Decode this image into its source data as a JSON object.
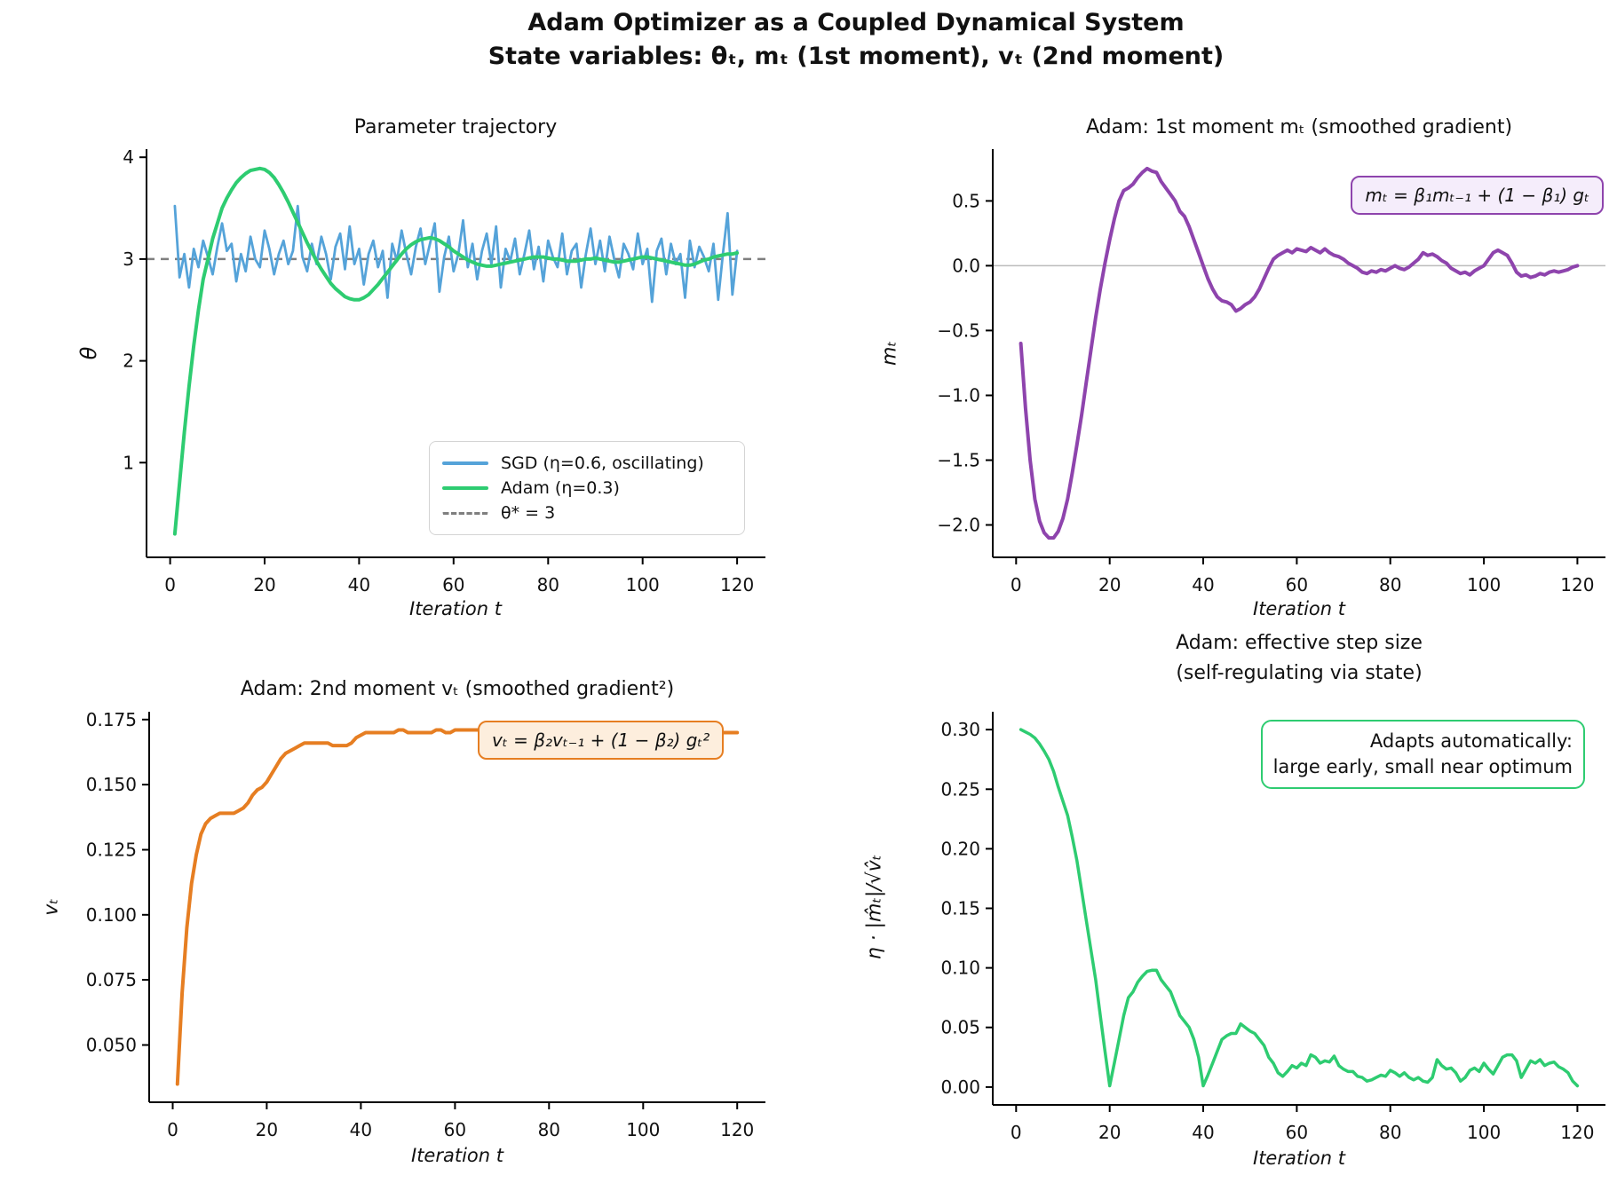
{
  "figure": {
    "suptitle_line1": "Adam Optimizer as a Coupled Dynamical System",
    "suptitle_line2": "State variables: θₜ, mₜ (1st moment), vₜ (2nd moment)",
    "background": "#ffffff"
  },
  "colors": {
    "sgd_blue": "#55a3d9",
    "adam_green": "#2ecc71",
    "moment_purple": "#8e44ad",
    "variance_orange": "#e67e22",
    "ref_gray": "#7f7f7f",
    "zero_line_gray": "#bbbbbb"
  },
  "chart_data": [
    {
      "id": "tl",
      "type": "line",
      "title": "Parameter trajectory",
      "xlabel": "Iteration t",
      "ylabel": "θ",
      "xlim": [
        -5,
        126
      ],
      "ylim": [
        0.07,
        4.08
      ],
      "grid": false,
      "xticks": [
        {
          "v": 0,
          "label": "0"
        },
        {
          "v": 20,
          "label": "20"
        },
        {
          "v": 40,
          "label": "40"
        },
        {
          "v": 60,
          "label": "60"
        },
        {
          "v": 80,
          "label": "80"
        },
        {
          "v": 100,
          "label": "100"
        },
        {
          "v": 120,
          "label": "120"
        }
      ],
      "yticks": [
        {
          "v": 1,
          "label": "1"
        },
        {
          "v": 2,
          "label": "2"
        },
        {
          "v": 3,
          "label": "3"
        },
        {
          "v": 4,
          "label": "4"
        }
      ],
      "ref_lines": [
        {
          "y": 3,
          "color": "#7f7f7f",
          "width": 2.5,
          "dash": "9 7",
          "name": "theta-star-line"
        }
      ],
      "series": [
        {
          "name": "SGD (η=0.6, oscillating)",
          "color": "#55a3d9",
          "width": 2.8,
          "x_start": 1,
          "values": [
            3.52,
            2.82,
            3.05,
            2.72,
            3.1,
            2.92,
            3.18,
            3.02,
            2.85,
            3.12,
            3.35,
            3.08,
            3.15,
            2.78,
            3.05,
            2.88,
            3.22,
            3.0,
            2.92,
            3.28,
            3.1,
            2.85,
            3.05,
            3.18,
            2.95,
            3.08,
            3.52,
            3.02,
            2.88,
            3.15,
            2.95,
            3.22,
            3.05,
            2.8,
            3.12,
            3.25,
            2.9,
            3.32,
            2.95,
            3.1,
            2.75,
            3.05,
            3.18,
            2.92,
            3.08,
            2.62,
            3.15,
            2.98,
            3.28,
            3.05,
            2.85,
            3.12,
            3.3,
            2.95,
            3.15,
            3.35,
            2.68,
            3.02,
            3.22,
            2.88,
            3.05,
            3.38,
            2.92,
            3.15,
            2.8,
            3.08,
            3.25,
            2.95,
            3.32,
            2.72,
            3.1,
            2.98,
            3.2,
            2.85,
            3.05,
            3.28,
            2.9,
            3.12,
            2.78,
            3.18,
            3.02,
            2.92,
            3.25,
            2.85,
            3.08,
            3.15,
            2.72,
            3.05,
            3.3,
            2.95,
            3.18,
            2.88,
            3.22,
            3.0,
            2.82,
            3.15,
            3.05,
            2.9,
            3.25,
            2.95,
            3.1,
            2.58,
            3.08,
            3.2,
            2.85,
            3.15,
            2.95,
            3.05,
            2.62,
            3.18,
            2.92,
            3.12,
            3.02,
            2.88,
            3.15,
            2.6,
            3.05,
            3.45,
            2.65,
            3.08
          ]
        },
        {
          "name": "Adam (η=0.3)",
          "color": "#2ecc71",
          "width": 4,
          "x_start": 1,
          "values": [
            0.3,
            0.8,
            1.3,
            1.75,
            2.15,
            2.5,
            2.8,
            3.0,
            3.2,
            3.35,
            3.5,
            3.6,
            3.68,
            3.75,
            3.8,
            3.84,
            3.87,
            3.88,
            3.89,
            3.88,
            3.85,
            3.8,
            3.73,
            3.65,
            3.56,
            3.46,
            3.36,
            3.26,
            3.16,
            3.07,
            2.98,
            2.9,
            2.83,
            2.76,
            2.71,
            2.67,
            2.63,
            2.61,
            2.6,
            2.6,
            2.62,
            2.65,
            2.7,
            2.75,
            2.81,
            2.87,
            2.93,
            2.99,
            3.05,
            3.1,
            3.14,
            3.17,
            3.19,
            3.2,
            3.21,
            3.2,
            3.18,
            3.15,
            3.12,
            3.08,
            3.05,
            3.02,
            2.99,
            2.97,
            2.95,
            2.94,
            2.93,
            2.93,
            2.94,
            2.95,
            2.96,
            2.97,
            2.98,
            2.99,
            3.0,
            3.01,
            3.02,
            3.02,
            3.02,
            3.01,
            3.0,
            3.0,
            2.99,
            2.98,
            2.98,
            2.98,
            2.99,
            3.0,
            3.0,
            3.01,
            3.0,
            2.99,
            2.98,
            2.97,
            2.97,
            2.98,
            2.99,
            3.0,
            3.01,
            3.02,
            3.02,
            3.01,
            3.0,
            2.99,
            2.98,
            2.97,
            2.96,
            2.95,
            2.94,
            2.94,
            2.95,
            2.97,
            2.99,
            3.0,
            3.02,
            3.03,
            3.04,
            3.05,
            3.05,
            3.06
          ]
        }
      ],
      "legend": {
        "position": "lower right",
        "entries": [
          {
            "label": "SGD (η=0.6, oscillating)",
            "color": "#55a3d9",
            "dash": false
          },
          {
            "label": "Adam (η=0.3)",
            "color": "#2ecc71",
            "dash": false
          },
          {
            "label": "θ* = 3",
            "color": "#7f7f7f",
            "dash": true
          }
        ]
      }
    },
    {
      "id": "tr",
      "type": "line",
      "title": "Adam: 1st moment mₜ (smoothed gradient)",
      "xlabel": "Iteration t",
      "ylabel": "mₜ",
      "xlim": [
        -5,
        126
      ],
      "ylim": [
        -2.25,
        0.9
      ],
      "grid": false,
      "xticks": [
        {
          "v": 0,
          "label": "0"
        },
        {
          "v": 20,
          "label": "20"
        },
        {
          "v": 40,
          "label": "40"
        },
        {
          "v": 60,
          "label": "60"
        },
        {
          "v": 80,
          "label": "80"
        },
        {
          "v": 100,
          "label": "100"
        },
        {
          "v": 120,
          "label": "120"
        }
      ],
      "yticks": [
        {
          "v": 0.5,
          "label": "0.5"
        },
        {
          "v": 0.0,
          "label": "0.0"
        },
        {
          "v": -0.5,
          "label": "−0.5"
        },
        {
          "v": -1.0,
          "label": "−1.0"
        },
        {
          "v": -1.5,
          "label": "−1.5"
        },
        {
          "v": -2.0,
          "label": "−2.0"
        }
      ],
      "ref_lines": [
        {
          "y": 0,
          "color": "#bbbbbb",
          "width": 1.5,
          "name": "zero-line"
        }
      ],
      "formula": {
        "text": "mₜ = β₁mₜ₋₁ + (1 − β₁) gₜ",
        "border": "#8e44ad",
        "bg": "#f5edfb"
      },
      "series": [
        {
          "name": "m_t",
          "color": "#8e44ad",
          "width": 4,
          "x_start": 1,
          "values": [
            -0.6,
            -1.1,
            -1.5,
            -1.8,
            -1.97,
            -2.06,
            -2.1,
            -2.1,
            -2.05,
            -1.95,
            -1.8,
            -1.6,
            -1.38,
            -1.15,
            -0.9,
            -0.65,
            -0.4,
            -0.18,
            0.02,
            0.2,
            0.36,
            0.5,
            0.58,
            0.6,
            0.63,
            0.68,
            0.72,
            0.75,
            0.73,
            0.72,
            0.65,
            0.6,
            0.55,
            0.5,
            0.42,
            0.38,
            0.3,
            0.2,
            0.1,
            0.0,
            -0.1,
            -0.18,
            -0.24,
            -0.27,
            -0.28,
            -0.3,
            -0.35,
            -0.33,
            -0.3,
            -0.28,
            -0.24,
            -0.18,
            -0.1,
            -0.02,
            0.05,
            0.08,
            0.1,
            0.12,
            0.1,
            0.13,
            0.12,
            0.11,
            0.14,
            0.12,
            0.1,
            0.13,
            0.1,
            0.08,
            0.07,
            0.05,
            0.02,
            0.0,
            -0.02,
            -0.05,
            -0.06,
            -0.04,
            -0.05,
            -0.03,
            -0.04,
            -0.02,
            0.0,
            -0.02,
            -0.03,
            -0.01,
            0.02,
            0.05,
            0.1,
            0.08,
            0.09,
            0.07,
            0.04,
            0.02,
            -0.02,
            -0.04,
            -0.06,
            -0.05,
            -0.07,
            -0.04,
            -0.02,
            0.0,
            0.05,
            0.1,
            0.12,
            0.1,
            0.08,
            0.02,
            -0.05,
            -0.08,
            -0.07,
            -0.09,
            -0.08,
            -0.06,
            -0.07,
            -0.05,
            -0.04,
            -0.05,
            -0.04,
            -0.03,
            -0.01,
            0.0
          ]
        }
      ]
    },
    {
      "id": "bl",
      "type": "line",
      "title": "Adam: 2nd moment vₜ (smoothed gradient²)",
      "xlabel": "Iteration t",
      "ylabel": "vₜ",
      "xlim": [
        -5,
        126
      ],
      "ylim": [
        0.028,
        0.178
      ],
      "grid": false,
      "xticks": [
        {
          "v": 0,
          "label": "0"
        },
        {
          "v": 20,
          "label": "20"
        },
        {
          "v": 40,
          "label": "40"
        },
        {
          "v": 60,
          "label": "60"
        },
        {
          "v": 80,
          "label": "80"
        },
        {
          "v": 100,
          "label": "100"
        },
        {
          "v": 120,
          "label": "120"
        }
      ],
      "yticks": [
        {
          "v": 0.05,
          "label": "0.050"
        },
        {
          "v": 0.075,
          "label": "0.075"
        },
        {
          "v": 0.1,
          "label": "0.100"
        },
        {
          "v": 0.125,
          "label": "0.125"
        },
        {
          "v": 0.15,
          "label": "0.150"
        },
        {
          "v": 0.175,
          "label": "0.175"
        }
      ],
      "ref_lines": [],
      "formula": {
        "text": "vₜ = β₂vₜ₋₁ + (1 − β₂) gₜ²",
        "border": "#e67e22",
        "bg": "#fdeedd"
      },
      "series": [
        {
          "name": "v_t",
          "color": "#e67e22",
          "width": 4,
          "x_start": 1,
          "values": [
            0.035,
            0.07,
            0.095,
            0.112,
            0.123,
            0.131,
            0.135,
            0.137,
            0.138,
            0.139,
            0.139,
            0.139,
            0.139,
            0.14,
            0.141,
            0.143,
            0.146,
            0.148,
            0.149,
            0.151,
            0.154,
            0.157,
            0.16,
            0.162,
            0.163,
            0.164,
            0.165,
            0.166,
            0.166,
            0.166,
            0.166,
            0.166,
            0.166,
            0.165,
            0.165,
            0.165,
            0.165,
            0.166,
            0.168,
            0.169,
            0.17,
            0.17,
            0.17,
            0.17,
            0.17,
            0.17,
            0.17,
            0.171,
            0.171,
            0.17,
            0.17,
            0.17,
            0.17,
            0.17,
            0.17,
            0.171,
            0.171,
            0.17,
            0.17,
            0.171,
            0.171,
            0.171,
            0.171,
            0.171,
            0.171,
            0.17,
            0.17,
            0.17,
            0.17,
            0.17,
            0.17,
            0.17,
            0.17,
            0.17,
            0.17,
            0.17,
            0.17,
            0.17,
            0.17,
            0.17,
            0.17,
            0.17,
            0.17,
            0.17,
            0.17,
            0.17,
            0.17,
            0.17,
            0.17,
            0.17,
            0.17,
            0.17,
            0.17,
            0.17,
            0.17,
            0.17,
            0.17,
            0.17,
            0.17,
            0.17,
            0.17,
            0.17,
            0.17,
            0.17,
            0.17,
            0.17,
            0.17,
            0.17,
            0.17,
            0.17,
            0.17,
            0.17,
            0.17,
            0.17,
            0.17,
            0.17,
            0.17,
            0.17,
            0.17,
            0.17
          ]
        }
      ]
    },
    {
      "id": "br",
      "type": "line",
      "title_line1": "Adam: effective step size",
      "title_line2": "(self-regulating via state)",
      "xlabel": "Iteration t",
      "ylabel": "η · |m̂ₜ|/√v̂ₜ",
      "xlim": [
        -5,
        126
      ],
      "ylim": [
        -0.015,
        0.315
      ],
      "grid": false,
      "xticks": [
        {
          "v": 0,
          "label": "0"
        },
        {
          "v": 20,
          "label": "20"
        },
        {
          "v": 40,
          "label": "40"
        },
        {
          "v": 60,
          "label": "60"
        },
        {
          "v": 80,
          "label": "80"
        },
        {
          "v": 100,
          "label": "100"
        },
        {
          "v": 120,
          "label": "120"
        }
      ],
      "yticks": [
        {
          "v": 0.0,
          "label": "0.00"
        },
        {
          "v": 0.05,
          "label": "0.05"
        },
        {
          "v": 0.1,
          "label": "0.10"
        },
        {
          "v": 0.15,
          "label": "0.15"
        },
        {
          "v": 0.2,
          "label": "0.20"
        },
        {
          "v": 0.25,
          "label": "0.25"
        },
        {
          "v": 0.3,
          "label": "0.30"
        }
      ],
      "ref_lines": [],
      "annotation": {
        "lines": [
          "Adapts automatically:",
          "large early, small near optimum"
        ],
        "border": "#2ecc71",
        "bg": "#ffffff"
      },
      "series": [
        {
          "name": "effective step size",
          "color": "#2ecc71",
          "width": 3.5,
          "x_start": 1,
          "values": [
            0.3,
            0.298,
            0.296,
            0.293,
            0.288,
            0.282,
            0.275,
            0.265,
            0.252,
            0.24,
            0.228,
            0.21,
            0.19,
            0.165,
            0.14,
            0.115,
            0.09,
            0.06,
            0.03,
            0.001,
            0.02,
            0.04,
            0.06,
            0.075,
            0.08,
            0.088,
            0.093,
            0.097,
            0.098,
            0.098,
            0.09,
            0.085,
            0.08,
            0.07,
            0.06,
            0.055,
            0.05,
            0.04,
            0.025,
            0.001,
            0.01,
            0.02,
            0.03,
            0.04,
            0.043,
            0.045,
            0.045,
            0.053,
            0.05,
            0.047,
            0.045,
            0.04,
            0.035,
            0.025,
            0.02,
            0.012,
            0.009,
            0.013,
            0.018,
            0.016,
            0.02,
            0.018,
            0.027,
            0.025,
            0.02,
            0.022,
            0.021,
            0.026,
            0.018,
            0.015,
            0.013,
            0.013,
            0.009,
            0.008,
            0.005,
            0.006,
            0.008,
            0.01,
            0.009,
            0.014,
            0.012,
            0.009,
            0.012,
            0.008,
            0.006,
            0.008,
            0.005,
            0.004,
            0.008,
            0.023,
            0.018,
            0.015,
            0.016,
            0.012,
            0.005,
            0.008,
            0.014,
            0.016,
            0.013,
            0.02,
            0.015,
            0.011,
            0.018,
            0.025,
            0.027,
            0.027,
            0.022,
            0.008,
            0.015,
            0.022,
            0.02,
            0.023,
            0.018,
            0.02,
            0.021,
            0.017,
            0.015,
            0.012,
            0.005,
            0.001
          ]
        }
      ]
    }
  ]
}
